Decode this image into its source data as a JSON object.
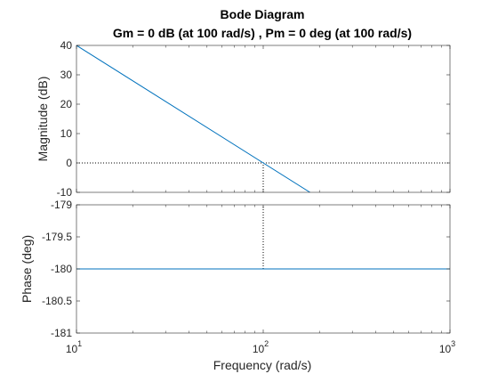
{
  "chart_data": [
    {
      "type": "line",
      "panel": "magnitude",
      "title": "Bode Diagram",
      "subtitle": "Gm = 0 dB (at 100 rad/s) ,  Pm = 0 deg (at 100 rad/s)",
      "xscale": "log",
      "xlim": [
        10,
        1000
      ],
      "ylim": [
        -10,
        40
      ],
      "ylabel": "Magnitude (dB)",
      "yticks": [
        "40",
        "30",
        "20",
        "10",
        "0",
        "-10"
      ],
      "grid": false,
      "series": [
        {
          "x": [
            10,
            178
          ],
          "y": [
            40,
            -10
          ],
          "color": "#0072BD"
        }
      ],
      "reference_line": {
        "y": 0,
        "style": "dotted",
        "color": "#000000"
      },
      "margin_marker": {
        "x": 100,
        "from": -10,
        "to": 0,
        "style": "dotted"
      }
    },
    {
      "type": "line",
      "panel": "phase",
      "xscale": "log",
      "xlim": [
        10,
        1000
      ],
      "ylim": [
        -181,
        -179
      ],
      "ylabel": "Phase (deg)",
      "xlabel": "Frequency  (rad/s)",
      "yticks": [
        "-179",
        "-179.5",
        "-180",
        "-180.5",
        "-181"
      ],
      "xticks": [
        {
          "base": "10",
          "exp": "1"
        },
        {
          "base": "10",
          "exp": "2"
        },
        {
          "base": "10",
          "exp": "3"
        }
      ],
      "grid": false,
      "series": [
        {
          "x": [
            10,
            1000
          ],
          "y": [
            -180,
            -180
          ],
          "color": "#0072BD"
        }
      ],
      "margin_marker": {
        "x": 100,
        "from": -180,
        "to": -179,
        "style": "dotted"
      }
    }
  ]
}
